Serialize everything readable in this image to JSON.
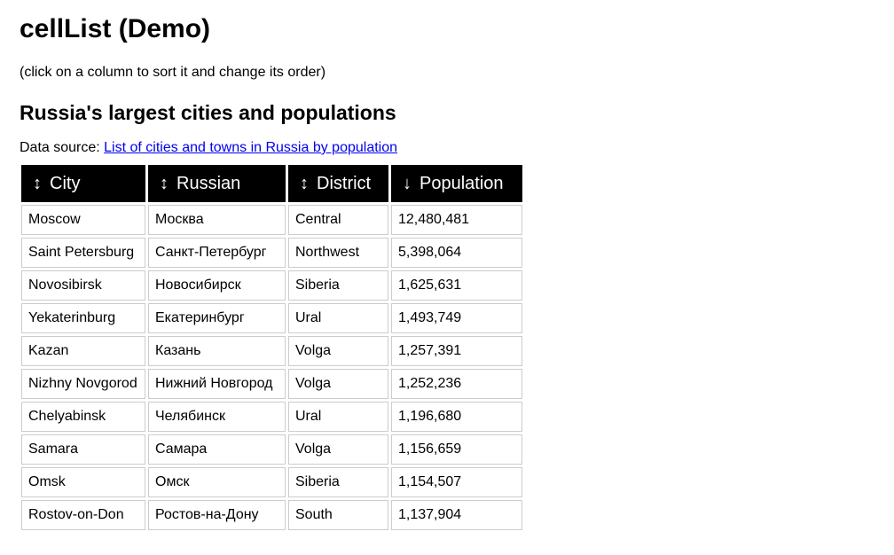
{
  "page": {
    "title": "cellList (Demo)",
    "hint": "(click on a column to sort it and change its order)",
    "subtitle": "Russia's largest cities and populations",
    "source_prefix": "Data source: ",
    "source_link": "List of cities and towns in Russia by population"
  },
  "table": {
    "columns": [
      {
        "arrow": "↕",
        "label": "City",
        "sort_state": "unsorted"
      },
      {
        "arrow": "↕",
        "label": "Russian",
        "sort_state": "unsorted"
      },
      {
        "arrow": "↕",
        "label": "District",
        "sort_state": "unsorted"
      },
      {
        "arrow": "↓",
        "label": "Population",
        "sort_state": "descending"
      }
    ],
    "rows": [
      [
        "Moscow",
        "Москва",
        "Central",
        "12,480,481"
      ],
      [
        "Saint Petersburg",
        "Санкт-Петербург",
        "Northwest",
        "5,398,064"
      ],
      [
        "Novosibirsk",
        "Новосибирск",
        "Siberia",
        "1,625,631"
      ],
      [
        "Yekaterinburg",
        "Екатеринбург",
        "Ural",
        "1,493,749"
      ],
      [
        "Kazan",
        "Казань",
        "Volga",
        "1,257,391"
      ],
      [
        "Nizhny Novgorod",
        "Нижний Новгород",
        "Volga",
        "1,252,236"
      ],
      [
        "Chelyabinsk",
        "Челябинск",
        "Ural",
        "1,196,680"
      ],
      [
        "Samara",
        "Самара",
        "Volga",
        "1,156,659"
      ],
      [
        "Omsk",
        "Омск",
        "Siberia",
        "1,154,507"
      ],
      [
        "Rostov-on-Don",
        "Ростов-на-Дону",
        "South",
        "1,137,904"
      ]
    ]
  }
}
